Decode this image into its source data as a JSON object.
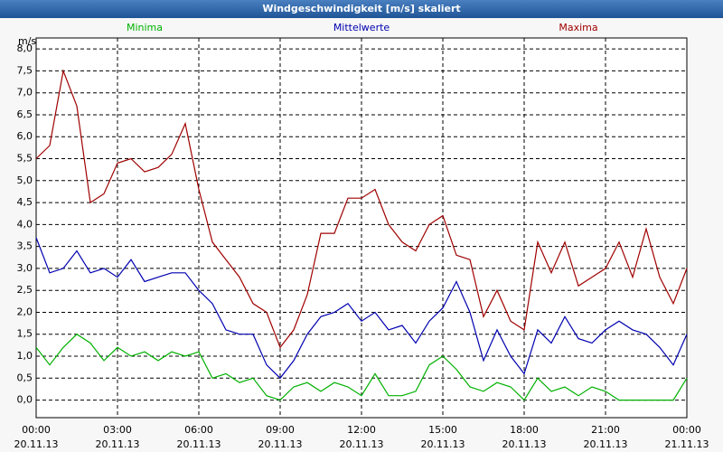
{
  "chart_data": {
    "type": "line",
    "title": "Windgeschwindigkeit [m/s] skaliert",
    "ylabel": "m/s",
    "x": [
      0,
      0.5,
      1,
      1.5,
      2,
      2.5,
      3,
      3.5,
      4,
      4.5,
      5,
      5.5,
      6,
      6.5,
      7,
      7.5,
      8,
      8.5,
      9,
      9.5,
      10,
      10.5,
      11,
      11.5,
      12,
      12.5,
      13,
      13.5,
      14,
      14.5,
      15,
      15.5,
      16,
      16.5,
      17,
      17.5,
      18,
      18.5,
      19,
      19.5,
      20,
      20.5,
      21,
      21.5,
      22,
      22.5,
      23,
      23.5,
      24
    ],
    "series": [
      {
        "name": "Minima",
        "color": "#00b000",
        "values": [
          1.2,
          0.8,
          1.2,
          1.5,
          1.3,
          0.9,
          1.2,
          1.0,
          1.1,
          0.9,
          1.1,
          1.0,
          1.1,
          0.5,
          0.6,
          0.4,
          0.5,
          0.1,
          0.0,
          0.3,
          0.4,
          0.2,
          0.4,
          0.3,
          0.1,
          0.6,
          0.1,
          0.1,
          0.2,
          0.8,
          1.0,
          0.7,
          0.3,
          0.2,
          0.4,
          0.3,
          0.0,
          0.5,
          0.2,
          0.3,
          0.1,
          0.3,
          0.2,
          0.0,
          0.0,
          0.0,
          0.0,
          0.0,
          0.5
        ]
      },
      {
        "name": "Mittelwerte",
        "color": "#0000b0",
        "values": [
          3.7,
          2.9,
          3.0,
          3.4,
          2.9,
          3.0,
          2.8,
          3.2,
          2.7,
          2.8,
          2.9,
          2.9,
          2.5,
          2.2,
          1.6,
          1.5,
          1.5,
          0.8,
          0.5,
          0.9,
          1.5,
          1.9,
          2.0,
          2.2,
          1.8,
          2.0,
          1.6,
          1.7,
          1.3,
          1.8,
          2.1,
          2.7,
          2.0,
          0.9,
          1.6,
          1.0,
          0.6,
          1.6,
          1.3,
          1.9,
          1.4,
          1.3,
          1.6,
          1.8,
          1.6,
          1.5,
          1.2,
          0.8,
          1.5
        ]
      },
      {
        "name": "Maxima",
        "color": "#a00000",
        "values": [
          5.5,
          5.8,
          7.5,
          6.7,
          4.5,
          4.7,
          5.4,
          5.5,
          5.2,
          5.3,
          5.6,
          6.3,
          4.8,
          3.6,
          3.2,
          2.8,
          2.2,
          2.0,
          1.2,
          1.6,
          2.4,
          3.8,
          3.8,
          4.6,
          4.6,
          4.8,
          4.0,
          3.6,
          3.4,
          4.0,
          4.2,
          3.3,
          3.2,
          1.9,
          2.5,
          1.8,
          1.6,
          3.6,
          2.9,
          3.6,
          2.6,
          2.8,
          3.0,
          3.6,
          2.8,
          3.9,
          2.8,
          2.2,
          3.0
        ]
      }
    ],
    "xlim": [
      0,
      24
    ],
    "xticks": [
      {
        "value": 0,
        "label": "00:00",
        "date": "20.11.13"
      },
      {
        "value": 3,
        "label": "03:00",
        "date": "20.11.13"
      },
      {
        "value": 6,
        "label": "06:00",
        "date": "20.11.13"
      },
      {
        "value": 9,
        "label": "09:00",
        "date": "20.11.13"
      },
      {
        "value": 12,
        "label": "12:00",
        "date": "20.11.13"
      },
      {
        "value": 15,
        "label": "15:00",
        "date": "20.11.13"
      },
      {
        "value": 18,
        "label": "18:00",
        "date": "20.11.13"
      },
      {
        "value": 21,
        "label": "21:00",
        "date": "20.11.13"
      },
      {
        "value": 24,
        "label": "00:00",
        "date": "21.11.13"
      }
    ],
    "ylim": [
      -0.4,
      8.25
    ],
    "yticks": [
      {
        "value": 0,
        "label": "0,0"
      },
      {
        "value": 0.5,
        "label": "0,5"
      },
      {
        "value": 1,
        "label": "1,0"
      },
      {
        "value": 1.5,
        "label": "1,5"
      },
      {
        "value": 2,
        "label": "2,0"
      },
      {
        "value": 2.5,
        "label": "2,5"
      },
      {
        "value": 3,
        "label": "3,0"
      },
      {
        "value": 3.5,
        "label": "3,5"
      },
      {
        "value": 4,
        "label": "4,0"
      },
      {
        "value": 4.5,
        "label": "4,5"
      },
      {
        "value": 5,
        "label": "5,0"
      },
      {
        "value": 5.5,
        "label": "5,5"
      },
      {
        "value": 6,
        "label": "6,0"
      },
      {
        "value": 6.5,
        "label": "6,5"
      },
      {
        "value": 7,
        "label": "7,0"
      },
      {
        "value": 7.5,
        "label": "7,5"
      },
      {
        "value": 8,
        "label": "8,0"
      }
    ],
    "grid": true
  }
}
